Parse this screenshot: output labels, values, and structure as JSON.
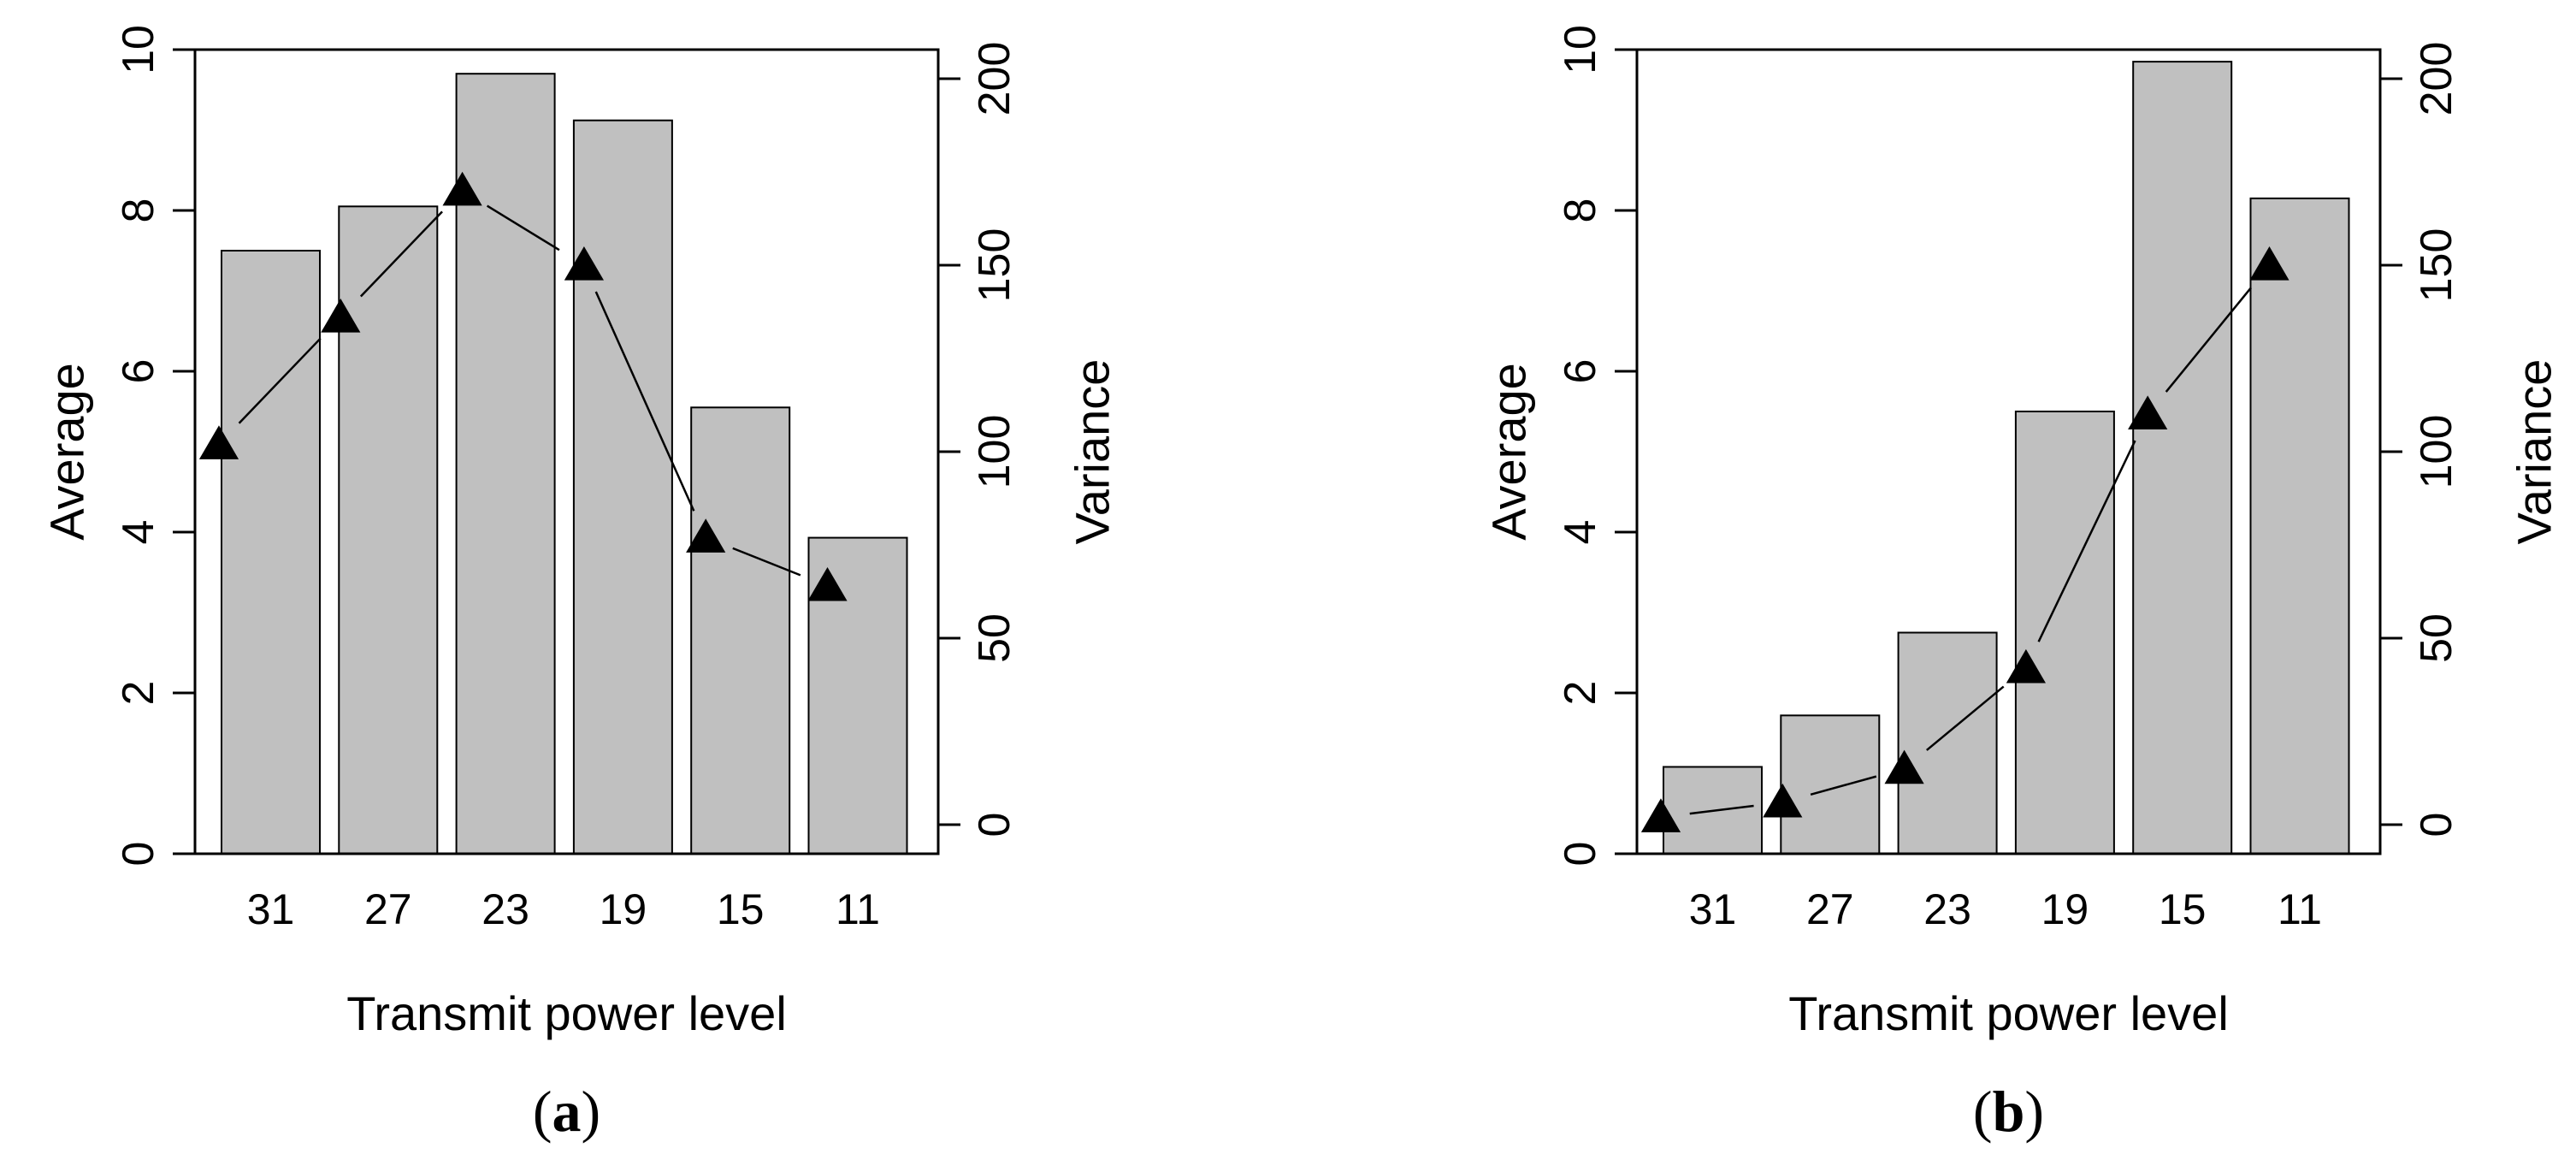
{
  "chart_data": [
    {
      "type": "bar",
      "panel_label": "a",
      "categories": [
        "31",
        "27",
        "23",
        "19",
        "15",
        "11"
      ],
      "xlabel": "Transmit power level",
      "ylabel": "Average",
      "ylabel_right": "Variance",
      "ylim": [
        0,
        10
      ],
      "ylim_right": [
        0,
        200
      ],
      "yticks": [
        "0",
        "2",
        "4",
        "6",
        "8",
        "10"
      ],
      "yticks_right": [
        "0",
        "50",
        "100",
        "150",
        "200"
      ],
      "bar_color": "#c0c0c0",
      "series": [
        {
          "axis": "left",
          "mark": "bar",
          "values": [
            7.5,
            8.05,
            9.7,
            9.12,
            5.55,
            3.93
          ]
        },
        {
          "axis": "right",
          "mark": "triangle-line",
          "values": [
            102,
            136,
            170,
            150,
            77,
            64
          ]
        }
      ],
      "grid": false
    },
    {
      "type": "bar",
      "panel_label": "b",
      "categories": [
        "31",
        "27",
        "23",
        "19",
        "15",
        "11"
      ],
      "xlabel": "Transmit power level",
      "ylabel": "Average",
      "ylabel_right": "Variance",
      "ylim": [
        0,
        10
      ],
      "ylim_right": [
        0,
        200
      ],
      "yticks": [
        "0",
        "2",
        "4",
        "6",
        "8",
        "10"
      ],
      "yticks_right": [
        "0",
        "50",
        "100",
        "150",
        "200"
      ],
      "bar_color": "#c0c0c0",
      "series": [
        {
          "axis": "left",
          "mark": "bar",
          "values": [
            1.08,
            1.72,
            2.75,
            5.5,
            9.85,
            8.15
          ]
        },
        {
          "axis": "right",
          "mark": "triangle-line",
          "values": [
            2,
            6,
            15,
            42,
            110,
            150
          ]
        }
      ],
      "grid": false
    }
  ]
}
